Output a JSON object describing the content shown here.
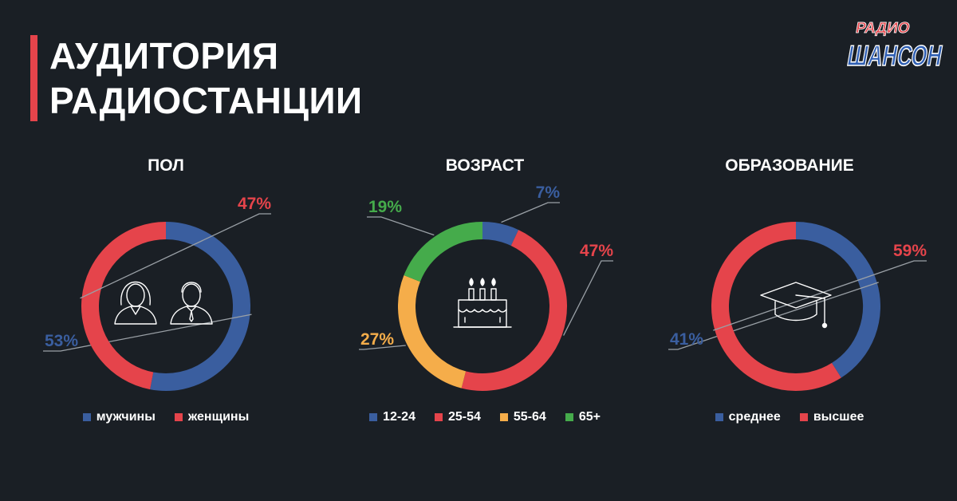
{
  "header": {
    "title_line1": "АУДИТОРИЯ",
    "title_line2": "РАДИОСТАНЦИИ"
  },
  "logo": {
    "line1": "РАДИО",
    "line2": "ШАНСОН"
  },
  "colors": {
    "blue": "#3a5e9f",
    "red": "#e5444b",
    "orange": "#f5ad4a",
    "green": "#45ab4b",
    "accent": "#e5444b",
    "background": "#1a1f25"
  },
  "chart_data": [
    {
      "type": "pie",
      "title": "ПОЛ",
      "center_icon": "people-icon",
      "categories": [
        "мужчины",
        "женщины"
      ],
      "values": [
        53,
        47
      ],
      "labels": [
        "53%",
        "47%"
      ],
      "colors": [
        "#3a5e9f",
        "#e5444b"
      ]
    },
    {
      "type": "pie",
      "title": "ВОЗРАСТ",
      "center_icon": "birthday-cake-icon",
      "categories": [
        "12-24",
        "25-54",
        "55-64",
        "65+"
      ],
      "values": [
        7,
        47,
        27,
        19
      ],
      "labels": [
        "7%",
        "47%",
        "27%",
        "19%"
      ],
      "colors": [
        "#3a5e9f",
        "#e5444b",
        "#f5ad4a",
        "#45ab4b"
      ]
    },
    {
      "type": "pie",
      "title": "ОБРАЗОВАНИЕ",
      "center_icon": "graduation-cap-icon",
      "categories": [
        "среднее",
        "высшее"
      ],
      "values": [
        41,
        59
      ],
      "labels": [
        "41%",
        "59%"
      ],
      "colors": [
        "#3a5e9f",
        "#e5444b"
      ]
    }
  ]
}
